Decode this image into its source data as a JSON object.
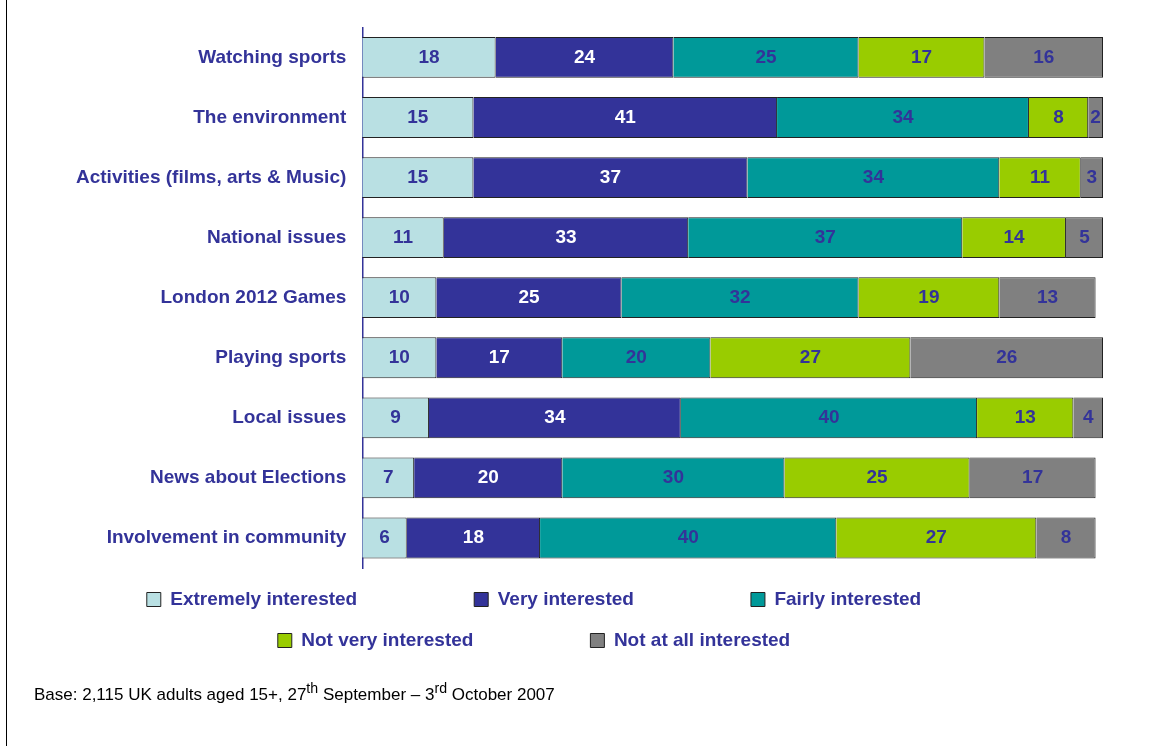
{
  "chart_data": {
    "type": "bar",
    "orientation": "horizontal",
    "stacked": true,
    "data_labels": true,
    "legend": "bottom",
    "categories": [
      "Watching sports",
      "The environment",
      "Activities (films, arts & Music)",
      "National issues",
      "London 2012 Games",
      "Playing sports",
      "Local issues",
      "News about Elections",
      "Involvement in community"
    ],
    "series": [
      {
        "name": "Extremely interested",
        "color": "#b9e0e3",
        "values": [
          18,
          15,
          15,
          11,
          10,
          10,
          9,
          7,
          6
        ]
      },
      {
        "name": "Very interested",
        "color": "#333399",
        "values": [
          24,
          41,
          37,
          33,
          25,
          17,
          34,
          20,
          18
        ]
      },
      {
        "name": "Fairly interested",
        "color": "#009999",
        "values": [
          25,
          34,
          34,
          37,
          32,
          20,
          40,
          30,
          40
        ]
      },
      {
        "name": "Not very interested",
        "color": "#99cc00",
        "values": [
          17,
          8,
          11,
          14,
          19,
          27,
          13,
          25,
          27
        ]
      },
      {
        "name": "Not at all interested",
        "color": "#808080",
        "values": [
          16,
          2,
          3,
          5,
          13,
          26,
          4,
          17,
          8
        ]
      }
    ],
    "annotations": [
      "Base: 2,115 UK adults aged 15+, 27$^{th}$ September – 3$^{rd}$ October 2007"
    ]
  }
}
